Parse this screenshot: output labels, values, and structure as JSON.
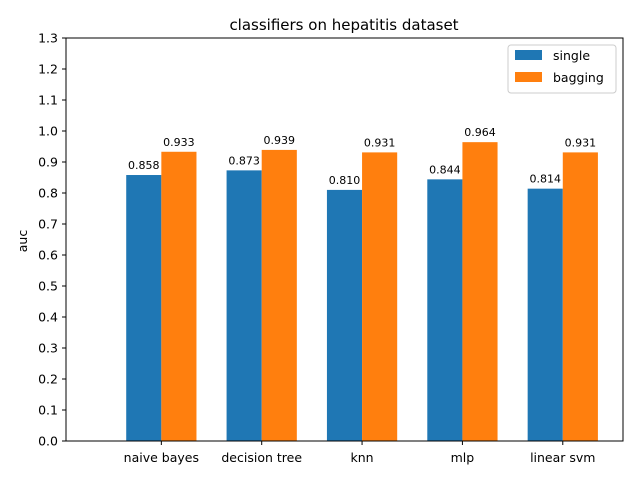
{
  "chart_data": {
    "type": "bar",
    "title": "classifiers on hepatitis dataset",
    "xlabel": "",
    "ylabel": "auc",
    "categories": [
      "naive bayes",
      "decision tree",
      "knn",
      "mlp",
      "linear svm"
    ],
    "series": [
      {
        "name": "single",
        "values": [
          0.858,
          0.873,
          0.81,
          0.844,
          0.814
        ],
        "labels": [
          "0.858",
          "0.873",
          "0.810",
          "0.844",
          "0.814"
        ],
        "color": "#1f77b4"
      },
      {
        "name": "bagging",
        "values": [
          0.933,
          0.939,
          0.931,
          0.964,
          0.931
        ],
        "labels": [
          "0.933",
          "0.939",
          "0.931",
          "0.964",
          "0.931"
        ],
        "color": "#ff7f0e"
      }
    ],
    "ylim": [
      0,
      1.3
    ],
    "yticks": [
      "0.0",
      "0.1",
      "0.2",
      "0.3",
      "0.4",
      "0.5",
      "0.6",
      "0.7",
      "0.8",
      "0.9",
      "1.0",
      "1.1",
      "1.2",
      "1.3"
    ],
    "grid": false,
    "legend_position": "top-right"
  }
}
